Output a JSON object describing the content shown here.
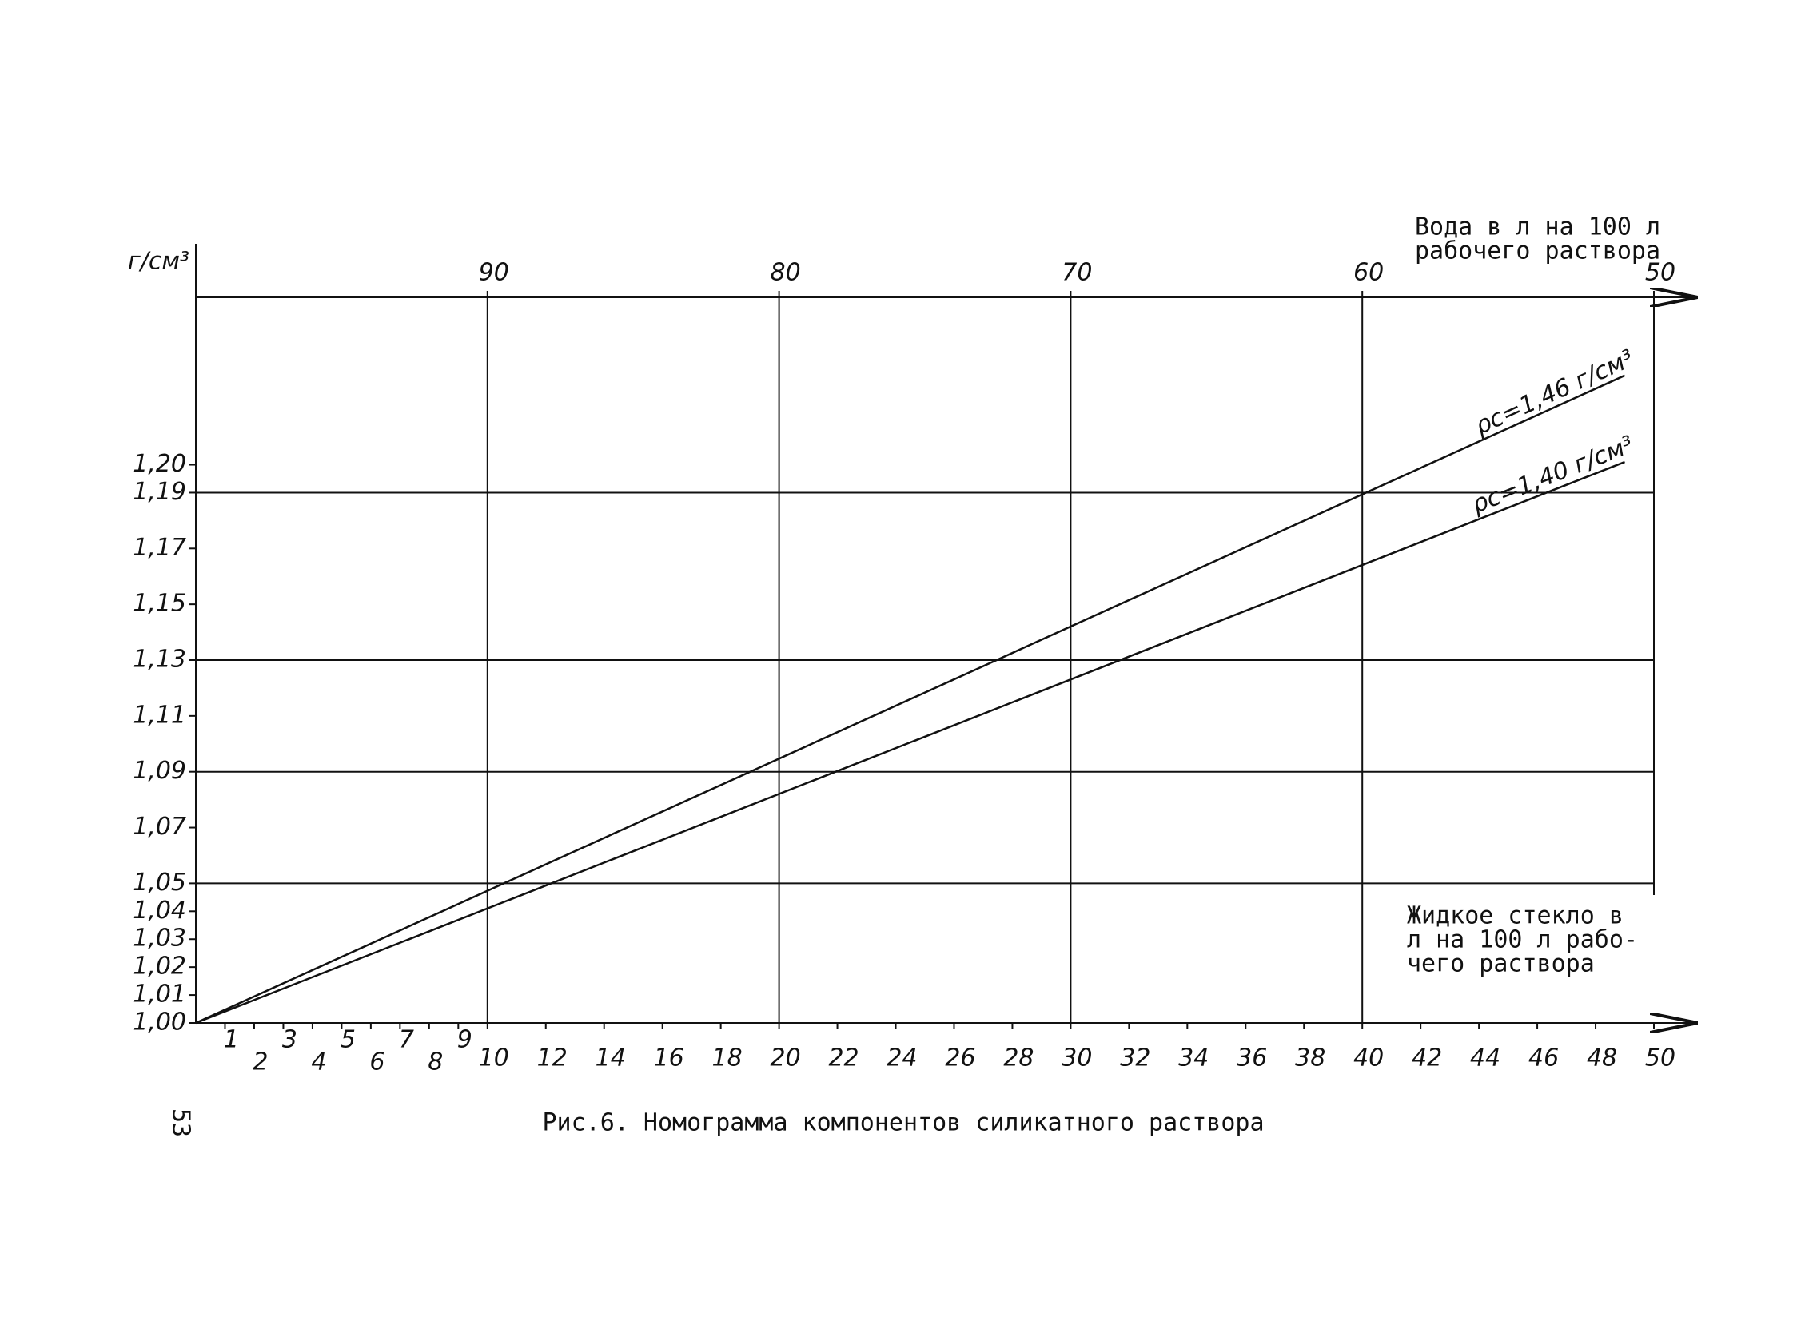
{
  "chart_data": {
    "type": "line",
    "y_label": "г/см³",
    "x_label": [
      "Жидкое стекло в",
      "л на 100 л рабо-",
      "чего раствора"
    ],
    "x2_label": [
      "Вода в л на 100 л",
      "рабочего раствора"
    ],
    "caption": "Рис.6. Номограмма компонентов силикатного раствора",
    "page_number": "53",
    "x": [
      0,
      49
    ],
    "series": [
      {
        "name": "ρc=1,46 г/см³",
        "color": "#111111",
        "values": [
          1.0,
          1.232
        ]
      },
      {
        "name": "ρc=1,40 г/см³",
        "color": "#111111",
        "values": [
          1.0,
          1.201
        ]
      }
    ],
    "xlim": [
      0,
      50
    ],
    "xticks": [
      1,
      2,
      3,
      4,
      5,
      6,
      7,
      8,
      9,
      10,
      12,
      14,
      16,
      18,
      20,
      22,
      24,
      26,
      28,
      30,
      32,
      34,
      36,
      38,
      40,
      42,
      44,
      46,
      48,
      50
    ],
    "x2lim": [
      100,
      50
    ],
    "x2ticks": [
      90,
      80,
      70,
      60,
      50
    ],
    "ylim": [
      1.0,
      1.26
    ],
    "yticks": [
      {
        "value": 1.0,
        "label": "1,00"
      },
      {
        "value": 1.01,
        "label": "1,01"
      },
      {
        "value": 1.02,
        "label": "1,02"
      },
      {
        "value": 1.03,
        "label": "1,03"
      },
      {
        "value": 1.04,
        "label": "1,04"
      },
      {
        "value": 1.05,
        "label": "1,05"
      },
      {
        "value": 1.07,
        "label": "1,07"
      },
      {
        "value": 1.09,
        "label": "1,09"
      },
      {
        "value": 1.11,
        "label": "1,11"
      },
      {
        "value": 1.13,
        "label": "1,13"
      },
      {
        "value": 1.15,
        "label": "1,15"
      },
      {
        "value": 1.17,
        "label": "1,17"
      },
      {
        "value": 1.19,
        "label": "1,19"
      },
      {
        "value": 1.2,
        "label": "1,20"
      }
    ],
    "xgrid": [
      10,
      20,
      30,
      40
    ],
    "ygrid": [
      1.05,
      1.09,
      1.13,
      1.19
    ]
  }
}
